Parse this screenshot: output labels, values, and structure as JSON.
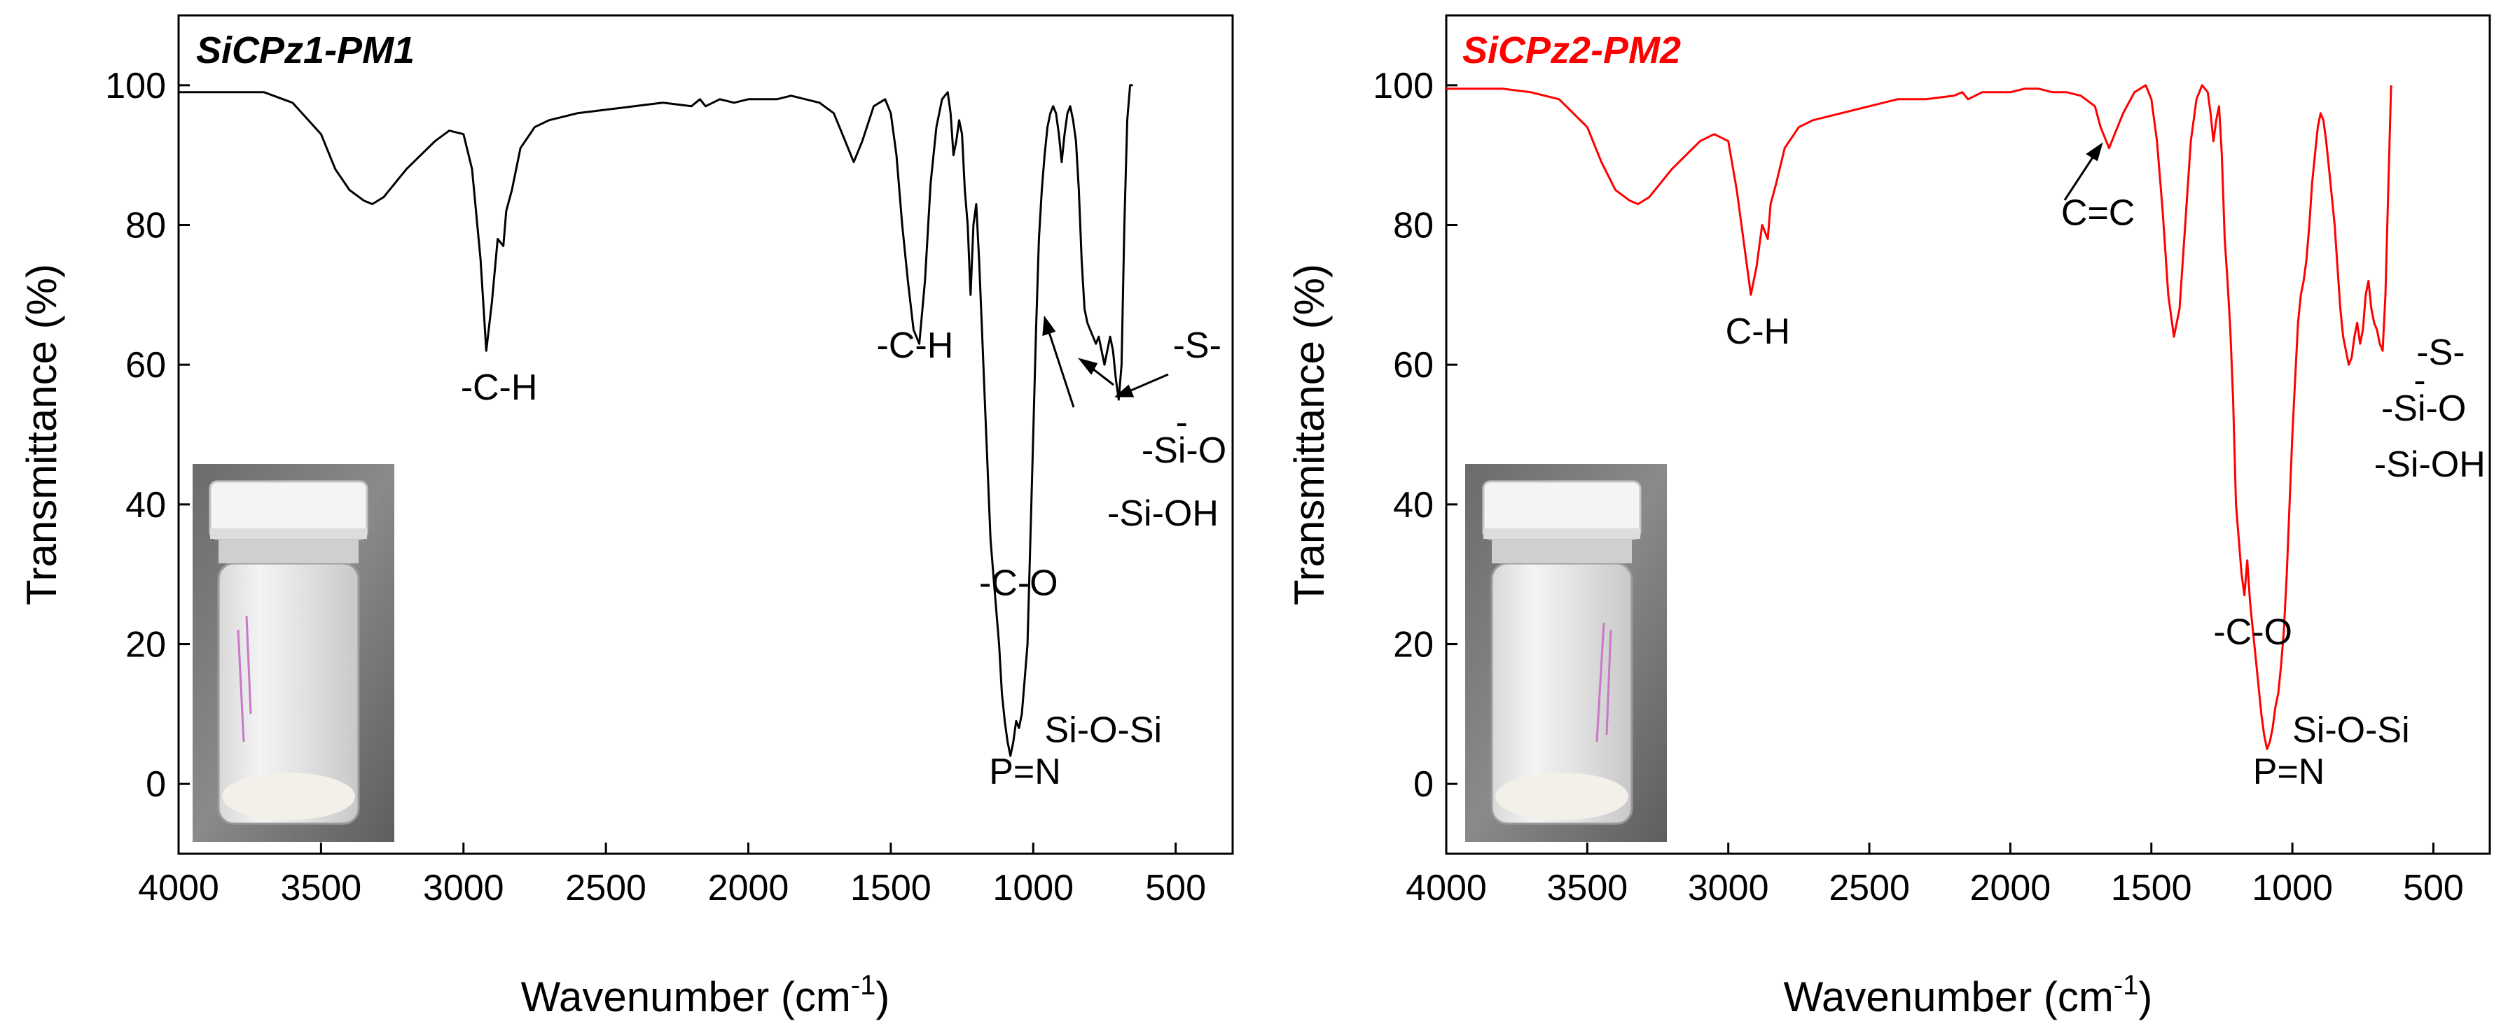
{
  "chart_data": [
    {
      "type": "line",
      "title": "SiCPz1-PM1",
      "title_color": "#000000",
      "line_color": "#000000",
      "xlabel": "Wavenumber (cm",
      "xlabel_sup": "-1",
      "xlabel_end": ")",
      "ylabel": "Transmittance (%)",
      "xlim": [
        4000,
        300
      ],
      "ylim": [
        -10,
        110
      ],
      "xticks": [
        4000,
        3500,
        3000,
        2500,
        2000,
        1500,
        1000,
        500
      ],
      "xtick_labels": [
        "4000",
        "3500",
        "3000",
        "2500",
        "2000",
        "1500",
        "1000",
        "500"
      ],
      "yticks": [
        0,
        20,
        40,
        60,
        80,
        100
      ],
      "ytick_labels": [
        "0",
        "20",
        "40",
        "60",
        "80",
        "100"
      ],
      "series": [
        {
          "name": "SiCPz1-PM1",
          "x": [
            4000,
            3800,
            3700,
            3600,
            3500,
            3450,
            3400,
            3350,
            3320,
            3280,
            3200,
            3100,
            3050,
            3000,
            2970,
            2940,
            2920,
            2900,
            2880,
            2860,
            2850,
            2830,
            2800,
            2750,
            2700,
            2600,
            2500,
            2400,
            2300,
            2200,
            2170,
            2150,
            2100,
            2050,
            2000,
            1950,
            1900,
            1850,
            1800,
            1750,
            1700,
            1680,
            1650,
            1630,
            1600,
            1560,
            1520,
            1500,
            1480,
            1460,
            1440,
            1420,
            1400,
            1380,
            1360,
            1340,
            1320,
            1300,
            1290,
            1280,
            1270,
            1260,
            1250,
            1240,
            1230,
            1220,
            1210,
            1200,
            1190,
            1180,
            1170,
            1160,
            1150,
            1140,
            1130,
            1120,
            1110,
            1100,
            1090,
            1080,
            1070,
            1060,
            1050,
            1040,
            1030,
            1020,
            1010,
            1000,
            990,
            980,
            970,
            960,
            950,
            940,
            930,
            920,
            910,
            900,
            890,
            880,
            870,
            860,
            850,
            840,
            830,
            820,
            810,
            800,
            790,
            780,
            770,
            760,
            750,
            740,
            730,
            720,
            710,
            700,
            690,
            680,
            670,
            660,
            650
          ],
          "y": [
            99,
            99,
            99,
            97.5,
            93,
            88,
            85,
            83.5,
            83,
            84,
            88,
            92,
            93.5,
            93,
            88,
            75,
            62,
            69,
            78,
            77,
            82,
            85,
            91,
            94,
            95,
            96,
            96.5,
            97,
            97.5,
            97,
            98,
            97,
            98,
            97.5,
            98,
            98,
            98,
            98.5,
            98,
            97.5,
            96,
            94,
            91,
            89,
            92,
            97,
            98,
            96,
            90,
            80,
            72,
            65,
            63,
            72,
            86,
            94,
            98,
            99,
            96,
            90,
            92,
            95,
            93,
            85,
            80,
            70,
            80,
            83,
            75,
            65,
            55,
            45,
            35,
            30,
            25,
            20,
            13,
            9,
            6,
            4,
            6,
            9,
            8,
            10,
            15,
            20,
            35,
            50,
            65,
            78,
            85,
            90,
            94,
            96,
            97,
            96,
            93,
            89,
            93,
            96,
            97,
            95,
            92,
            85,
            75,
            68,
            66,
            65,
            64,
            63,
            64,
            62,
            60,
            62,
            64,
            62,
            58,
            55,
            60,
            80,
            95,
            100,
            100
          ]
        }
      ],
      "annotations": [
        {
          "text": "-C-H",
          "x": 3010,
          "y": 55
        },
        {
          "text": "-C-H",
          "x": 1550,
          "y": 61
        },
        {
          "text": "-S-",
          "x": 510,
          "y": 61
        },
        {
          "text": "-Si-O",
          "x": 620,
          "y": 46
        },
        {
          "text": "-",
          "x": 500,
          "y": 50
        },
        {
          "text": "-Si-OH",
          "x": 740,
          "y": 37
        },
        {
          "text": "-C-O",
          "x": 1190,
          "y": 27
        },
        {
          "text": "Si-O-Si",
          "x": 960,
          "y": 6
        },
        {
          "text": "P=N",
          "x": 1155,
          "y": 0
        }
      ],
      "inset": {
        "description": "photo of white powder in glass vial with white cap"
      }
    },
    {
      "type": "line",
      "title": "SiCPz2-PM2",
      "title_color": "#ff0000",
      "line_color": "#ff0000",
      "xlabel": "Wavenumber (cm",
      "xlabel_sup": "-1",
      "xlabel_end": ")",
      "ylabel": "Transmittance (%)",
      "xlim": [
        4000,
        300
      ],
      "ylim": [
        -10,
        110
      ],
      "xticks": [
        4000,
        3500,
        3000,
        2500,
        2000,
        1500,
        1000,
        500
      ],
      "xtick_labels": [
        "4000",
        "3500",
        "3000",
        "2500",
        "2000",
        "1500",
        "1000",
        "500"
      ],
      "yticks": [
        0,
        20,
        40,
        60,
        80,
        100
      ],
      "ytick_labels": [
        "0",
        "20",
        "40",
        "60",
        "80",
        "100"
      ],
      "series": [
        {
          "name": "SiCPz2-PM2",
          "x": [
            4000,
            3800,
            3700,
            3600,
            3500,
            3450,
            3400,
            3350,
            3320,
            3280,
            3200,
            3100,
            3050,
            3000,
            2970,
            2940,
            2920,
            2900,
            2880,
            2860,
            2850,
            2830,
            2800,
            2750,
            2700,
            2600,
            2500,
            2400,
            2300,
            2200,
            2170,
            2150,
            2100,
            2050,
            2000,
            1950,
            1900,
            1850,
            1800,
            1750,
            1700,
            1680,
            1650,
            1630,
            1600,
            1560,
            1520,
            1500,
            1480,
            1460,
            1440,
            1420,
            1400,
            1380,
            1360,
            1340,
            1320,
            1300,
            1290,
            1280,
            1270,
            1260,
            1250,
            1240,
            1230,
            1220,
            1210,
            1200,
            1190,
            1180,
            1170,
            1160,
            1150,
            1140,
            1130,
            1120,
            1110,
            1100,
            1090,
            1080,
            1070,
            1060,
            1050,
            1040,
            1030,
            1020,
            1010,
            1000,
            990,
            980,
            970,
            960,
            950,
            940,
            930,
            920,
            910,
            900,
            890,
            880,
            870,
            860,
            850,
            840,
            830,
            820,
            810,
            800,
            790,
            780,
            770,
            760,
            750,
            740,
            730,
            720,
            710,
            700,
            690,
            680,
            670,
            660,
            650
          ],
          "y": [
            99.5,
            99.5,
            99,
            98,
            94,
            89,
            85,
            83.5,
            83,
            84,
            88,
            92,
            93,
            92,
            85,
            76,
            70,
            74,
            80,
            78,
            83,
            86,
            91,
            94,
            95,
            96,
            97,
            98,
            98,
            98.5,
            99,
            98,
            99,
            99,
            99,
            99.5,
            99.5,
            99,
            99,
            98.5,
            97,
            94,
            91,
            93,
            96,
            99,
            100,
            98,
            92,
            82,
            70,
            64,
            68,
            80,
            92,
            98,
            100,
            99,
            96,
            92,
            95,
            97,
            90,
            78,
            72,
            65,
            55,
            40,
            35,
            30,
            27,
            32,
            26,
            22,
            18,
            14,
            10,
            7,
            5,
            6,
            8,
            11,
            13,
            17,
            22,
            30,
            40,
            50,
            58,
            66,
            70,
            72,
            75,
            80,
            86,
            90,
            94,
            96,
            95,
            92,
            88,
            84,
            80,
            74,
            68,
            64,
            62,
            60,
            61,
            64,
            66,
            63,
            65,
            70,
            72,
            68,
            66,
            65,
            63,
            62,
            70,
            85,
            100
          ]
        }
      ],
      "annotations": [
        {
          "text": "C=C",
          "x": 1820,
          "y": 80
        },
        {
          "text": "C-H",
          "x": 3010,
          "y": 63
        },
        {
          "text": "-S-",
          "x": 560,
          "y": 60
        },
        {
          "text": "-Si-O",
          "x": 685,
          "y": 52
        },
        {
          "text": "-",
          "x": 570,
          "y": 56
        },
        {
          "text": "-Si-OH",
          "x": 710,
          "y": 44
        },
        {
          "text": "-C-O",
          "x": 1280,
          "y": 20
        },
        {
          "text": "Si-O-Si",
          "x": 1000,
          "y": 6
        },
        {
          "text": "P=N",
          "x": 1140,
          "y": 0
        }
      ],
      "inset": {
        "description": "photo of white powder in glass vial with white cap"
      }
    }
  ]
}
